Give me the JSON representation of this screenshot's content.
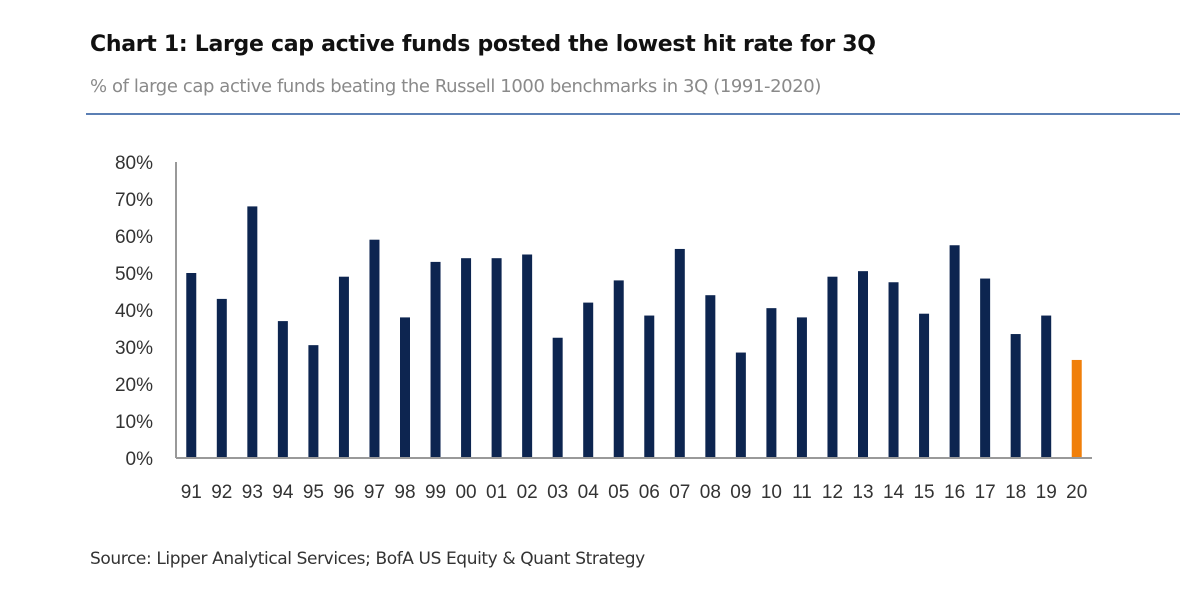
{
  "header": {
    "title": "Chart 1: Large cap active funds posted the lowest hit rate for 3Q",
    "subtitle": "% of large cap active funds beating the Russell 1000 benchmarks in 3Q (1991-2020)"
  },
  "footer": {
    "source": "Source: Lipper Analytical Services; BofA US Equity & Quant Strategy"
  },
  "colors": {
    "bar": "#0d2550",
    "highlight": "#f07f0a",
    "axis": "#999999",
    "rule": "#5b7fb4"
  },
  "chart_data": {
    "type": "bar",
    "title": "Chart 1: Large cap active funds posted the lowest hit rate for 3Q",
    "subtitle": "% of large cap active funds beating the Russell 1000 benchmarks in 3Q (1991-2020)",
    "xlabel": "",
    "ylabel": "",
    "ylim": [
      0,
      80
    ],
    "yticks": [
      "0%",
      "10%",
      "20%",
      "30%",
      "40%",
      "50%",
      "60%",
      "70%",
      "80%"
    ],
    "grid": false,
    "legend": "none",
    "categories": [
      "91",
      "92",
      "93",
      "94",
      "95",
      "96",
      "97",
      "98",
      "99",
      "00",
      "01",
      "02",
      "03",
      "04",
      "05",
      "06",
      "07",
      "08",
      "09",
      "10",
      "11",
      "12",
      "13",
      "14",
      "15",
      "16",
      "17",
      "18",
      "19",
      "20"
    ],
    "values": [
      50,
      43,
      68,
      37,
      30.5,
      49,
      59,
      38,
      53,
      54,
      54,
      55,
      32.5,
      42,
      48,
      38.5,
      56.5,
      44,
      28.5,
      40.5,
      38,
      49,
      50.5,
      47.5,
      39,
      57.5,
      48.5,
      33.5,
      38.5,
      26.5
    ],
    "highlight_category": "20",
    "unit": "%"
  }
}
